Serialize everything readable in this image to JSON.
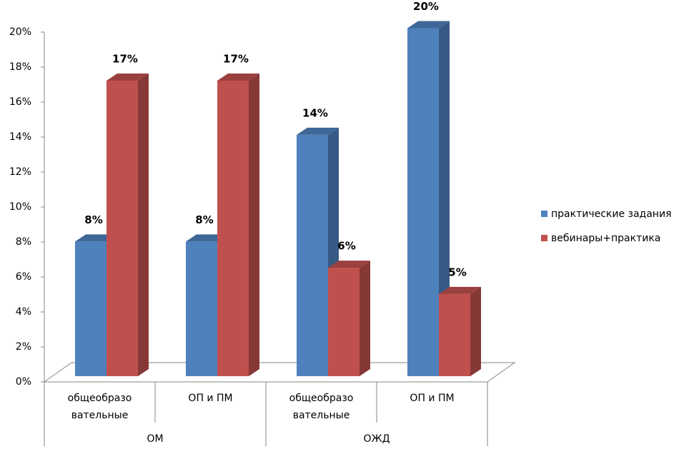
{
  "chart_data": {
    "type": "bar3d",
    "groups": [
      {
        "label": "ОМ",
        "categories": [
          [
            "общеобразо",
            "вательные"
          ],
          [
            "ОП и ПМ"
          ]
        ]
      },
      {
        "label": "ОЖД",
        "categories": [
          [
            "общеобразо",
            "вательные"
          ],
          [
            "ОП и ПМ"
          ]
        ]
      }
    ],
    "series": [
      {
        "name": "практические задания",
        "color": "#4f81bd",
        "values": [
          7.7,
          7.7,
          13.8,
          19.9
        ],
        "value_labels": [
          "8%",
          "8%",
          "14%",
          "20%"
        ]
      },
      {
        "name": "вебинары+практика",
        "color": "#c0504d",
        "values": [
          16.9,
          16.9,
          6.2,
          4.7
        ],
        "value_labels": [
          "17%",
          "17%",
          "6%",
          "5%"
        ]
      }
    ],
    "ylim": [
      0,
      20
    ],
    "yticks": [
      {
        "value": 0,
        "label": "0%"
      },
      {
        "value": 2,
        "label": "2%"
      },
      {
        "value": 4,
        "label": "4%"
      },
      {
        "value": 6,
        "label": "6%"
      },
      {
        "value": 8,
        "label": "8%"
      },
      {
        "value": 10,
        "label": "10%"
      },
      {
        "value": 12,
        "label": "12%"
      },
      {
        "value": 14,
        "label": "14%"
      },
      {
        "value": 16,
        "label": "16%"
      },
      {
        "value": 18,
        "label": "18%"
      },
      {
        "value": 20,
        "label": "20%"
      }
    ],
    "legend": "right"
  }
}
